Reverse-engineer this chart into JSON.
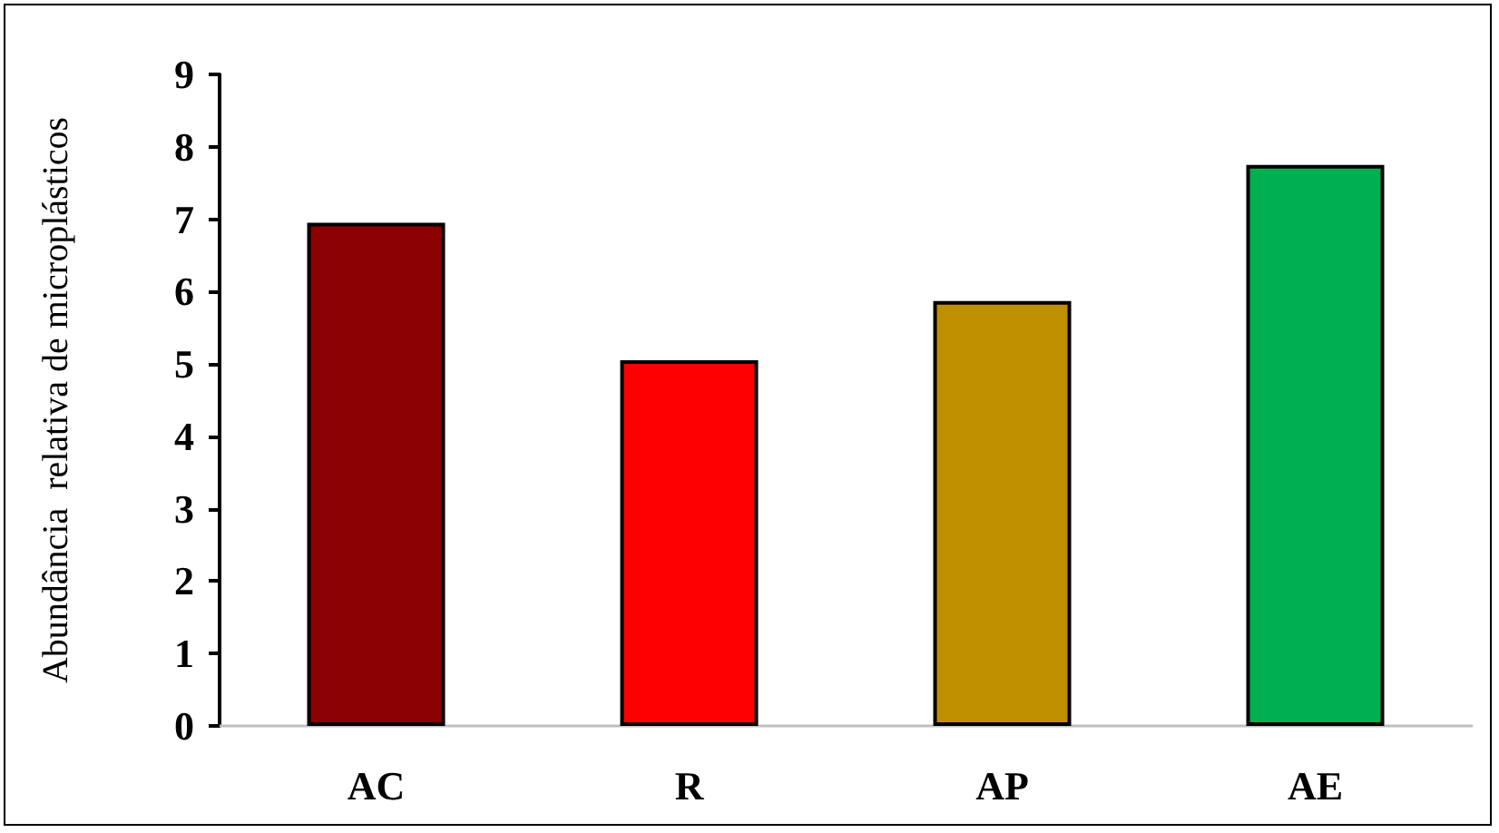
{
  "chart_data": {
    "type": "bar",
    "ylabel": "Abundância  relativa de microplásticos",
    "categories": [
      "AC",
      "R",
      "AP",
      "AE"
    ],
    "values": [
      6.95,
      5.05,
      5.87,
      7.75
    ],
    "colors": [
      "#8b0000",
      "#ff0000",
      "#bf8f00",
      "#00b050"
    ],
    "ylim": [
      0,
      9
    ],
    "yticks": [
      0,
      1,
      2,
      3,
      4,
      5,
      6,
      7,
      8,
      9
    ],
    "grid": false
  }
}
